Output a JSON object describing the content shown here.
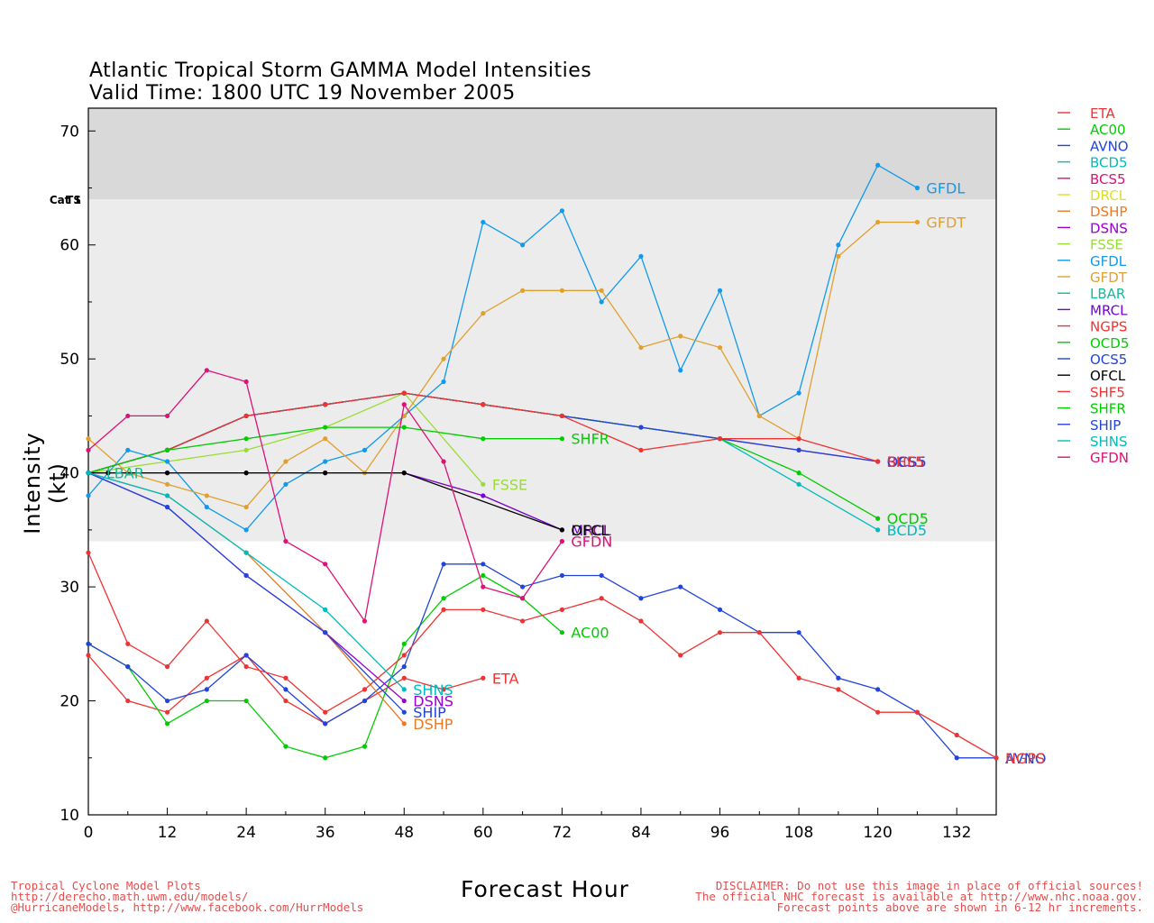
{
  "title_line1": "Atlantic Tropical Storm GAMMA Model Intensities",
  "title_line2": "Valid Time: 1800 UTC 19 November 2005",
  "footer_left": [
    "Tropical Cyclone Model Plots",
    "http://derecho.math.uwm.edu/models/",
    "@HurricaneModels, http://www.facebook.com/HurrModels"
  ],
  "footer_right": [
    "DISCLAIMER: Do not use this image in place of official sources!",
    "The official NHC forecast is available at http://www.nhc.noaa.gov.",
    "Forecast points above are shown in 6-12 hr increments."
  ],
  "chart_data": {
    "type": "line",
    "title": "Atlantic Tropical Storm GAMMA Model Intensities",
    "subtitle": "Valid Time: 1800 UTC 19 November 2005",
    "xlabel": "Forecast Hour",
    "ylabel": "Intensity (kt)",
    "xlim": [
      0,
      138
    ],
    "ylim": [
      10,
      72
    ],
    "xticks": [
      0,
      12,
      24,
      36,
      48,
      60,
      72,
      84,
      96,
      108,
      120,
      132
    ],
    "yticks": [
      10,
      20,
      30,
      40,
      50,
      60,
      70
    ],
    "bands": [
      {
        "label": "TS",
        "from": 34,
        "to": 64,
        "color": "#ececec"
      },
      {
        "label": "Cat 1",
        "from": 64,
        "to": 72,
        "color": "#d9d9d9"
      }
    ],
    "legend_position": "right",
    "series": [
      {
        "name": "ETA",
        "color": "#ee3333",
        "x": [
          0,
          6,
          12,
          18,
          24,
          30,
          36,
          42,
          48,
          54,
          60
        ],
        "y": [
          24,
          20,
          19,
          22,
          24,
          20,
          18,
          20,
          22,
          21,
          22
        ],
        "label": "ETA"
      },
      {
        "name": "AC00",
        "color": "#00cc00",
        "x": [
          0,
          6,
          12,
          18,
          24,
          30,
          36,
          42,
          48,
          54,
          60,
          66,
          72
        ],
        "y": [
          25,
          23,
          18,
          20,
          20,
          16,
          15,
          16,
          25,
          29,
          31,
          29,
          26
        ],
        "label": "AC00"
      },
      {
        "name": "AVNO",
        "color": "#2244dd",
        "x": [
          0,
          6,
          12,
          18,
          24,
          30,
          36,
          42,
          48,
          54,
          60,
          66,
          72,
          78,
          84,
          90,
          96,
          102,
          108,
          114,
          120,
          126,
          132,
          138
        ],
        "y": [
          25,
          23,
          20,
          21,
          24,
          21,
          18,
          20,
          23,
          32,
          32,
          30,
          31,
          31,
          29,
          30,
          28,
          26,
          26,
          22,
          21,
          19,
          15,
          15
        ],
        "label": "AVNO"
      },
      {
        "name": "BCD5",
        "color": "#00bbbb",
        "x": [
          0,
          12,
          24,
          36,
          48,
          60,
          72,
          84,
          96,
          108,
          120
        ],
        "y": [
          40,
          42,
          45,
          46,
          47,
          46,
          45,
          44,
          43,
          39,
          35
        ],
        "label": "BCD5"
      },
      {
        "name": "BCS5",
        "color": "#dd1177",
        "x": [
          0,
          12,
          24,
          36,
          48,
          60,
          72,
          84,
          96,
          108,
          120
        ],
        "y": [
          40,
          42,
          45,
          46,
          47,
          46,
          45,
          44,
          43,
          42,
          41
        ],
        "label": "BCS5"
      },
      {
        "name": "DRCL",
        "color": "#dddd22",
        "x": [
          0,
          12,
          24,
          36,
          48,
          60,
          72
        ],
        "y": [
          40,
          40,
          40,
          40,
          40,
          38,
          35
        ],
        "label": "DRCL"
      },
      {
        "name": "DSHP",
        "color": "#ee7722",
        "x": [
          0,
          12,
          24,
          36,
          48
        ],
        "y": [
          40,
          38,
          33,
          26,
          18
        ],
        "label": "DSHP"
      },
      {
        "name": "DSNS",
        "color": "#9900cc",
        "x": [
          0,
          12,
          24,
          36,
          48
        ],
        "y": [
          40,
          37,
          31,
          26,
          20
        ],
        "label": "DSNS"
      },
      {
        "name": "FSSE",
        "color": "#99dd33",
        "x": [
          0,
          12,
          24,
          36,
          48,
          60
        ],
        "y": [
          40,
          41,
          42,
          44,
          47,
          39
        ],
        "label": "FSSE"
      },
      {
        "name": "GFDL",
        "color": "#1199ee",
        "x": [
          0,
          6,
          12,
          18,
          24,
          30,
          36,
          42,
          48,
          54,
          60,
          66,
          72,
          78,
          84,
          90,
          96,
          102,
          108,
          114,
          120,
          126
        ],
        "y": [
          38,
          42,
          41,
          37,
          35,
          39,
          41,
          42,
          45,
          48,
          62,
          60,
          63,
          55,
          59,
          49,
          56,
          45,
          47,
          60,
          67,
          65
        ],
        "label": "GFDL"
      },
      {
        "name": "GFDT",
        "color": "#e0a030",
        "x": [
          0,
          6,
          12,
          18,
          24,
          30,
          36,
          42,
          48,
          54,
          60,
          66,
          72,
          78,
          84,
          90,
          96,
          102,
          108,
          114,
          120,
          126
        ],
        "y": [
          43,
          40,
          39,
          38,
          37,
          41,
          43,
          40,
          45,
          50,
          54,
          56,
          56,
          56,
          51,
          52,
          51,
          45,
          43,
          59,
          62,
          62
        ],
        "label": "GFDT"
      },
      {
        "name": "LBAR",
        "color": "#11bb99",
        "x": [
          0,
          3
        ],
        "y": [
          40,
          40
        ],
        "label": "LBAR"
      },
      {
        "name": "MRCL",
        "color": "#7700dd",
        "x": [
          0,
          12,
          24,
          36,
          48,
          60,
          72
        ],
        "y": [
          40,
          40,
          40,
          40,
          40,
          38,
          35
        ],
        "label": "MRCL"
      },
      {
        "name": "NGPS",
        "color": "#ee3333",
        "x": [
          0,
          6,
          12,
          18,
          24,
          30,
          36,
          42,
          48,
          54,
          60,
          66,
          72,
          78,
          84,
          90,
          96,
          102,
          108,
          114,
          120,
          126,
          132,
          138
        ],
        "y": [
          33,
          25,
          23,
          27,
          23,
          22,
          19,
          21,
          24,
          28,
          28,
          27,
          28,
          29,
          27,
          24,
          26,
          26,
          22,
          21,
          19,
          19,
          17,
          15
        ],
        "label": "NGPS"
      },
      {
        "name": "OCD5",
        "color": "#00cc00",
        "x": [
          0,
          12,
          24,
          36,
          48,
          60,
          72,
          84,
          96,
          108,
          120
        ],
        "y": [
          40,
          42,
          45,
          46,
          47,
          46,
          45,
          44,
          43,
          40,
          36
        ],
        "label": "OCD5"
      },
      {
        "name": "OCS5",
        "color": "#2244dd",
        "x": [
          0,
          12,
          24,
          36,
          48,
          60,
          72,
          84,
          96,
          108,
          120
        ],
        "y": [
          40,
          42,
          45,
          46,
          47,
          46,
          45,
          44,
          43,
          42,
          41
        ],
        "label": "OCS5"
      },
      {
        "name": "OFCL",
        "color": "#000000",
        "x": [
          0,
          3,
          12,
          24,
          36,
          48,
          72
        ],
        "y": [
          40,
          40,
          40,
          40,
          40,
          40,
          35
        ],
        "label": "OFCL"
      },
      {
        "name": "SHF5",
        "color": "#ee3333",
        "x": [
          0,
          12,
          24,
          36,
          48,
          60,
          72,
          84,
          96,
          108,
          120
        ],
        "y": [
          40,
          42,
          45,
          46,
          47,
          46,
          45,
          42,
          43,
          43,
          41
        ],
        "label": "SHF5"
      },
      {
        "name": "SHFR",
        "color": "#00cc00",
        "x": [
          0,
          12,
          24,
          36,
          48,
          60,
          72
        ],
        "y": [
          40,
          42,
          43,
          44,
          44,
          43,
          43
        ],
        "label": "SHFR"
      },
      {
        "name": "SHIP",
        "color": "#2244dd",
        "x": [
          0,
          12,
          24,
          36,
          48
        ],
        "y": [
          40,
          37,
          31,
          26,
          19
        ],
        "label": "SHIP"
      },
      {
        "name": "SHNS",
        "color": "#00bbbb",
        "x": [
          0,
          12,
          24,
          36,
          48
        ],
        "y": [
          40,
          38,
          33,
          28,
          21
        ],
        "label": "SHNS"
      },
      {
        "name": "GFDN",
        "color": "#dd1177",
        "x": [
          0,
          6,
          12,
          18,
          24,
          30,
          36,
          42,
          48,
          54,
          60,
          66,
          72
        ],
        "y": [
          42,
          45,
          45,
          49,
          48,
          34,
          32,
          27,
          46,
          41,
          30,
          29,
          34
        ],
        "label": "GFDN"
      }
    ]
  }
}
